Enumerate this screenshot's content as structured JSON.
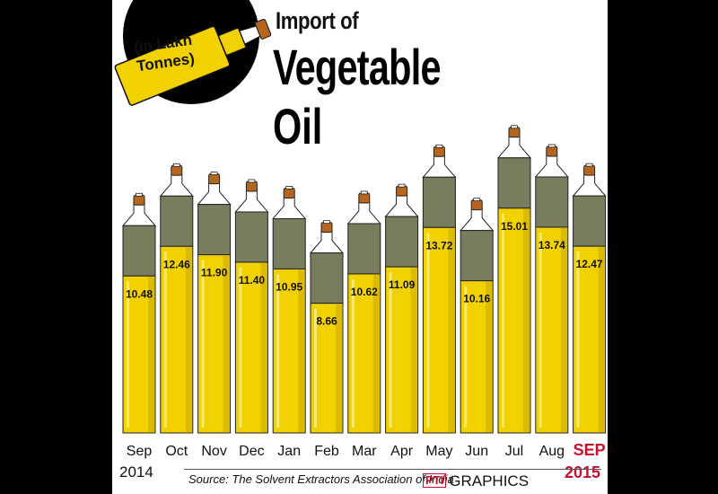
{
  "title": {
    "line1": "Import of",
    "line2": "Vegetable",
    "line3": "Oil"
  },
  "unit_label": "(in Lakh Tonnes)",
  "source": "Source: The Solvent Extractors Association of India",
  "logo": {
    "mark": "PTI",
    "text": "GRAPHICS"
  },
  "year_start": "2014",
  "year_end": "2015",
  "colors": {
    "oil": "#f2d100",
    "oil_dark": "#c9a800",
    "glass_top": "#7a7c5e",
    "cork": "#b5651d",
    "highlight_month": "#c8102e"
  },
  "chart_data": {
    "type": "bar",
    "title": "Import of Vegetable Oil",
    "ylabel": "(in Lakh Tonnes)",
    "categories": [
      "Sep",
      "Oct",
      "Nov",
      "Dec",
      "Jan",
      "Feb",
      "Mar",
      "Apr",
      "May",
      "Jun",
      "Jul",
      "Aug",
      "SEP"
    ],
    "values": [
      10.48,
      12.46,
      11.9,
      11.4,
      10.95,
      8.66,
      10.62,
      11.09,
      13.72,
      10.16,
      15.01,
      13.74,
      12.47
    ],
    "value_labels": [
      "10.48",
      "12.46",
      "11.90",
      "11.40",
      "10.95",
      "8.66",
      "10.62",
      "11.09",
      "13.72",
      "10.16",
      "15.01",
      "13.74",
      "12.47"
    ],
    "highlight_category": "SEP",
    "mark_style": "oil-bottle"
  }
}
